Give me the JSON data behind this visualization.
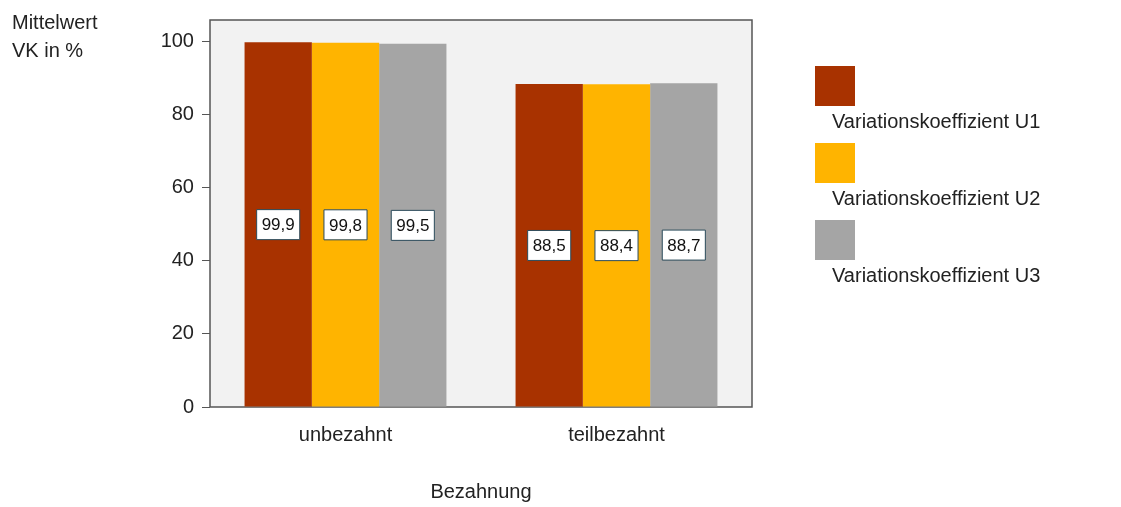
{
  "chart_data": {
    "type": "bar",
    "ylabel": "Mittelwert\nVK in %",
    "xlabel": "Bezahnung",
    "categories": [
      "unbezahnt",
      "teilbezahnt"
    ],
    "series": [
      {
        "name": "Variationskoeffizient U1",
        "color": "#a83200",
        "values": [
          99.9,
          88.5
        ],
        "value_labels": [
          "99,9",
          "88,5"
        ]
      },
      {
        "name": "Variationskoeffizient U2",
        "color": "#ffb400",
        "values": [
          99.8,
          88.4
        ],
        "value_labels": [
          "99,8",
          "88,4"
        ]
      },
      {
        "name": "Variationskoeffizient U3",
        "color": "#a5a5a5",
        "values": [
          99.5,
          88.7
        ],
        "value_labels": [
          "99,5",
          "88,7"
        ]
      }
    ],
    "ylim": [
      0,
      106
    ],
    "yticks": [
      0,
      20,
      40,
      60,
      80,
      100
    ],
    "grid": false,
    "legend": "right"
  }
}
